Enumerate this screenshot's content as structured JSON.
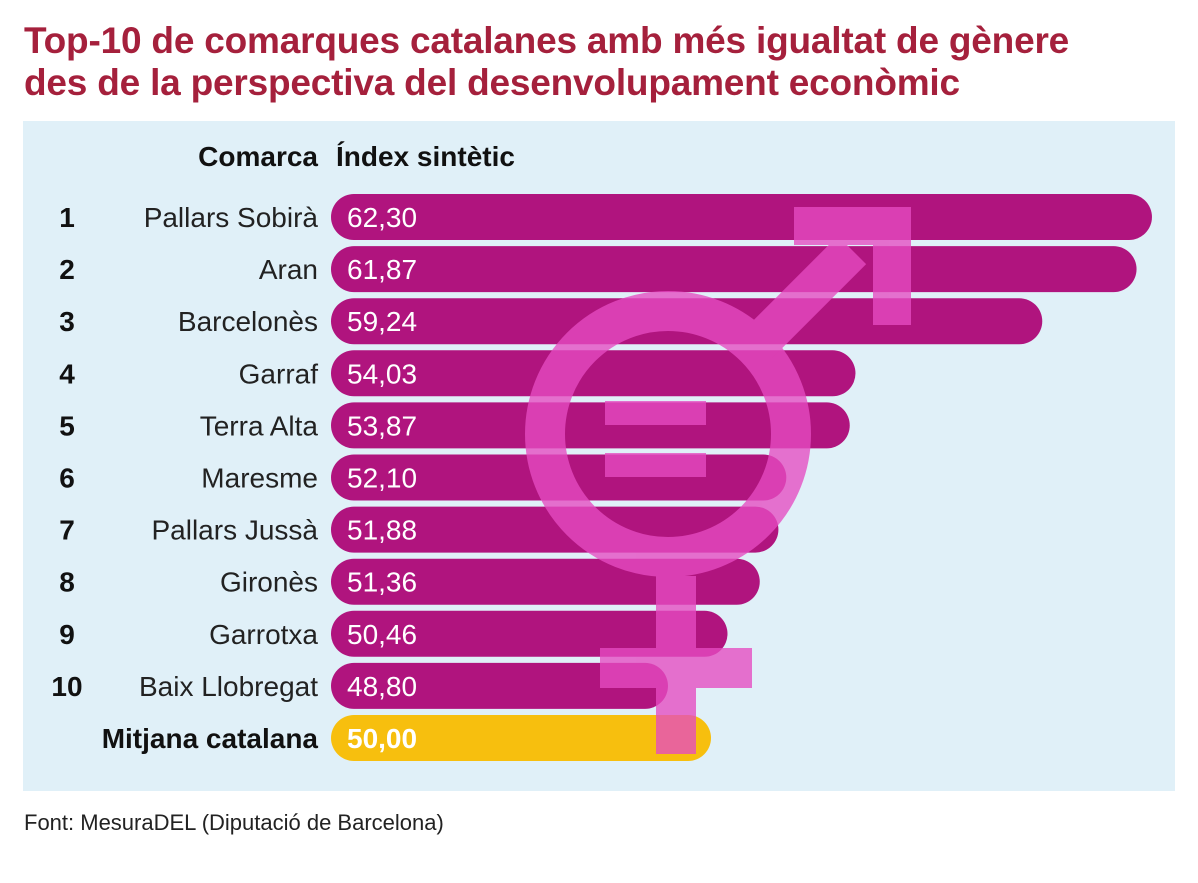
{
  "title_line1": "Top-10 de comarques catalanes amb més igualtat de gènere",
  "title_line2": "des de la perspectiva del desenvolupament econòmic",
  "source": "Font: MesuraDEL (Diputació de Barcelona)",
  "chart_data": {
    "type": "bar",
    "orientation": "horizontal",
    "title": "Top-10 de comarques catalanes amb més igualtat de gènere des de la perspectiva del desenvolupament econòmic",
    "header_category": "Comarca",
    "header_value": "Índex sintètic",
    "ranks": [
      "1",
      "2",
      "3",
      "4",
      "5",
      "6",
      "7",
      "8",
      "9",
      "10"
    ],
    "categories": [
      "Pallars Sobirà",
      "Aran",
      "Barcelonès",
      "Garraf",
      "Terra Alta",
      "Maresme",
      "Pallars Jussà",
      "Gironès",
      "Garrotxa",
      "Baix Llobregat"
    ],
    "values": [
      62.3,
      61.87,
      59.24,
      54.03,
      53.87,
      52.1,
      51.88,
      51.36,
      50.46,
      48.8
    ],
    "value_labels": [
      "62,30",
      "61,87",
      "59,24",
      "54,03",
      "53,87",
      "52,10",
      "51,88",
      "51,36",
      "50,46",
      "48,80"
    ],
    "average": {
      "label": "Mitjana catalana",
      "value": 50.0,
      "value_label": "50,00"
    },
    "colors": {
      "bar": "#b0147e",
      "average_bar": "#f7bf0e",
      "symbol": "#e64cc2",
      "panel": "#e0f0f8",
      "title": "#a5203c"
    }
  }
}
